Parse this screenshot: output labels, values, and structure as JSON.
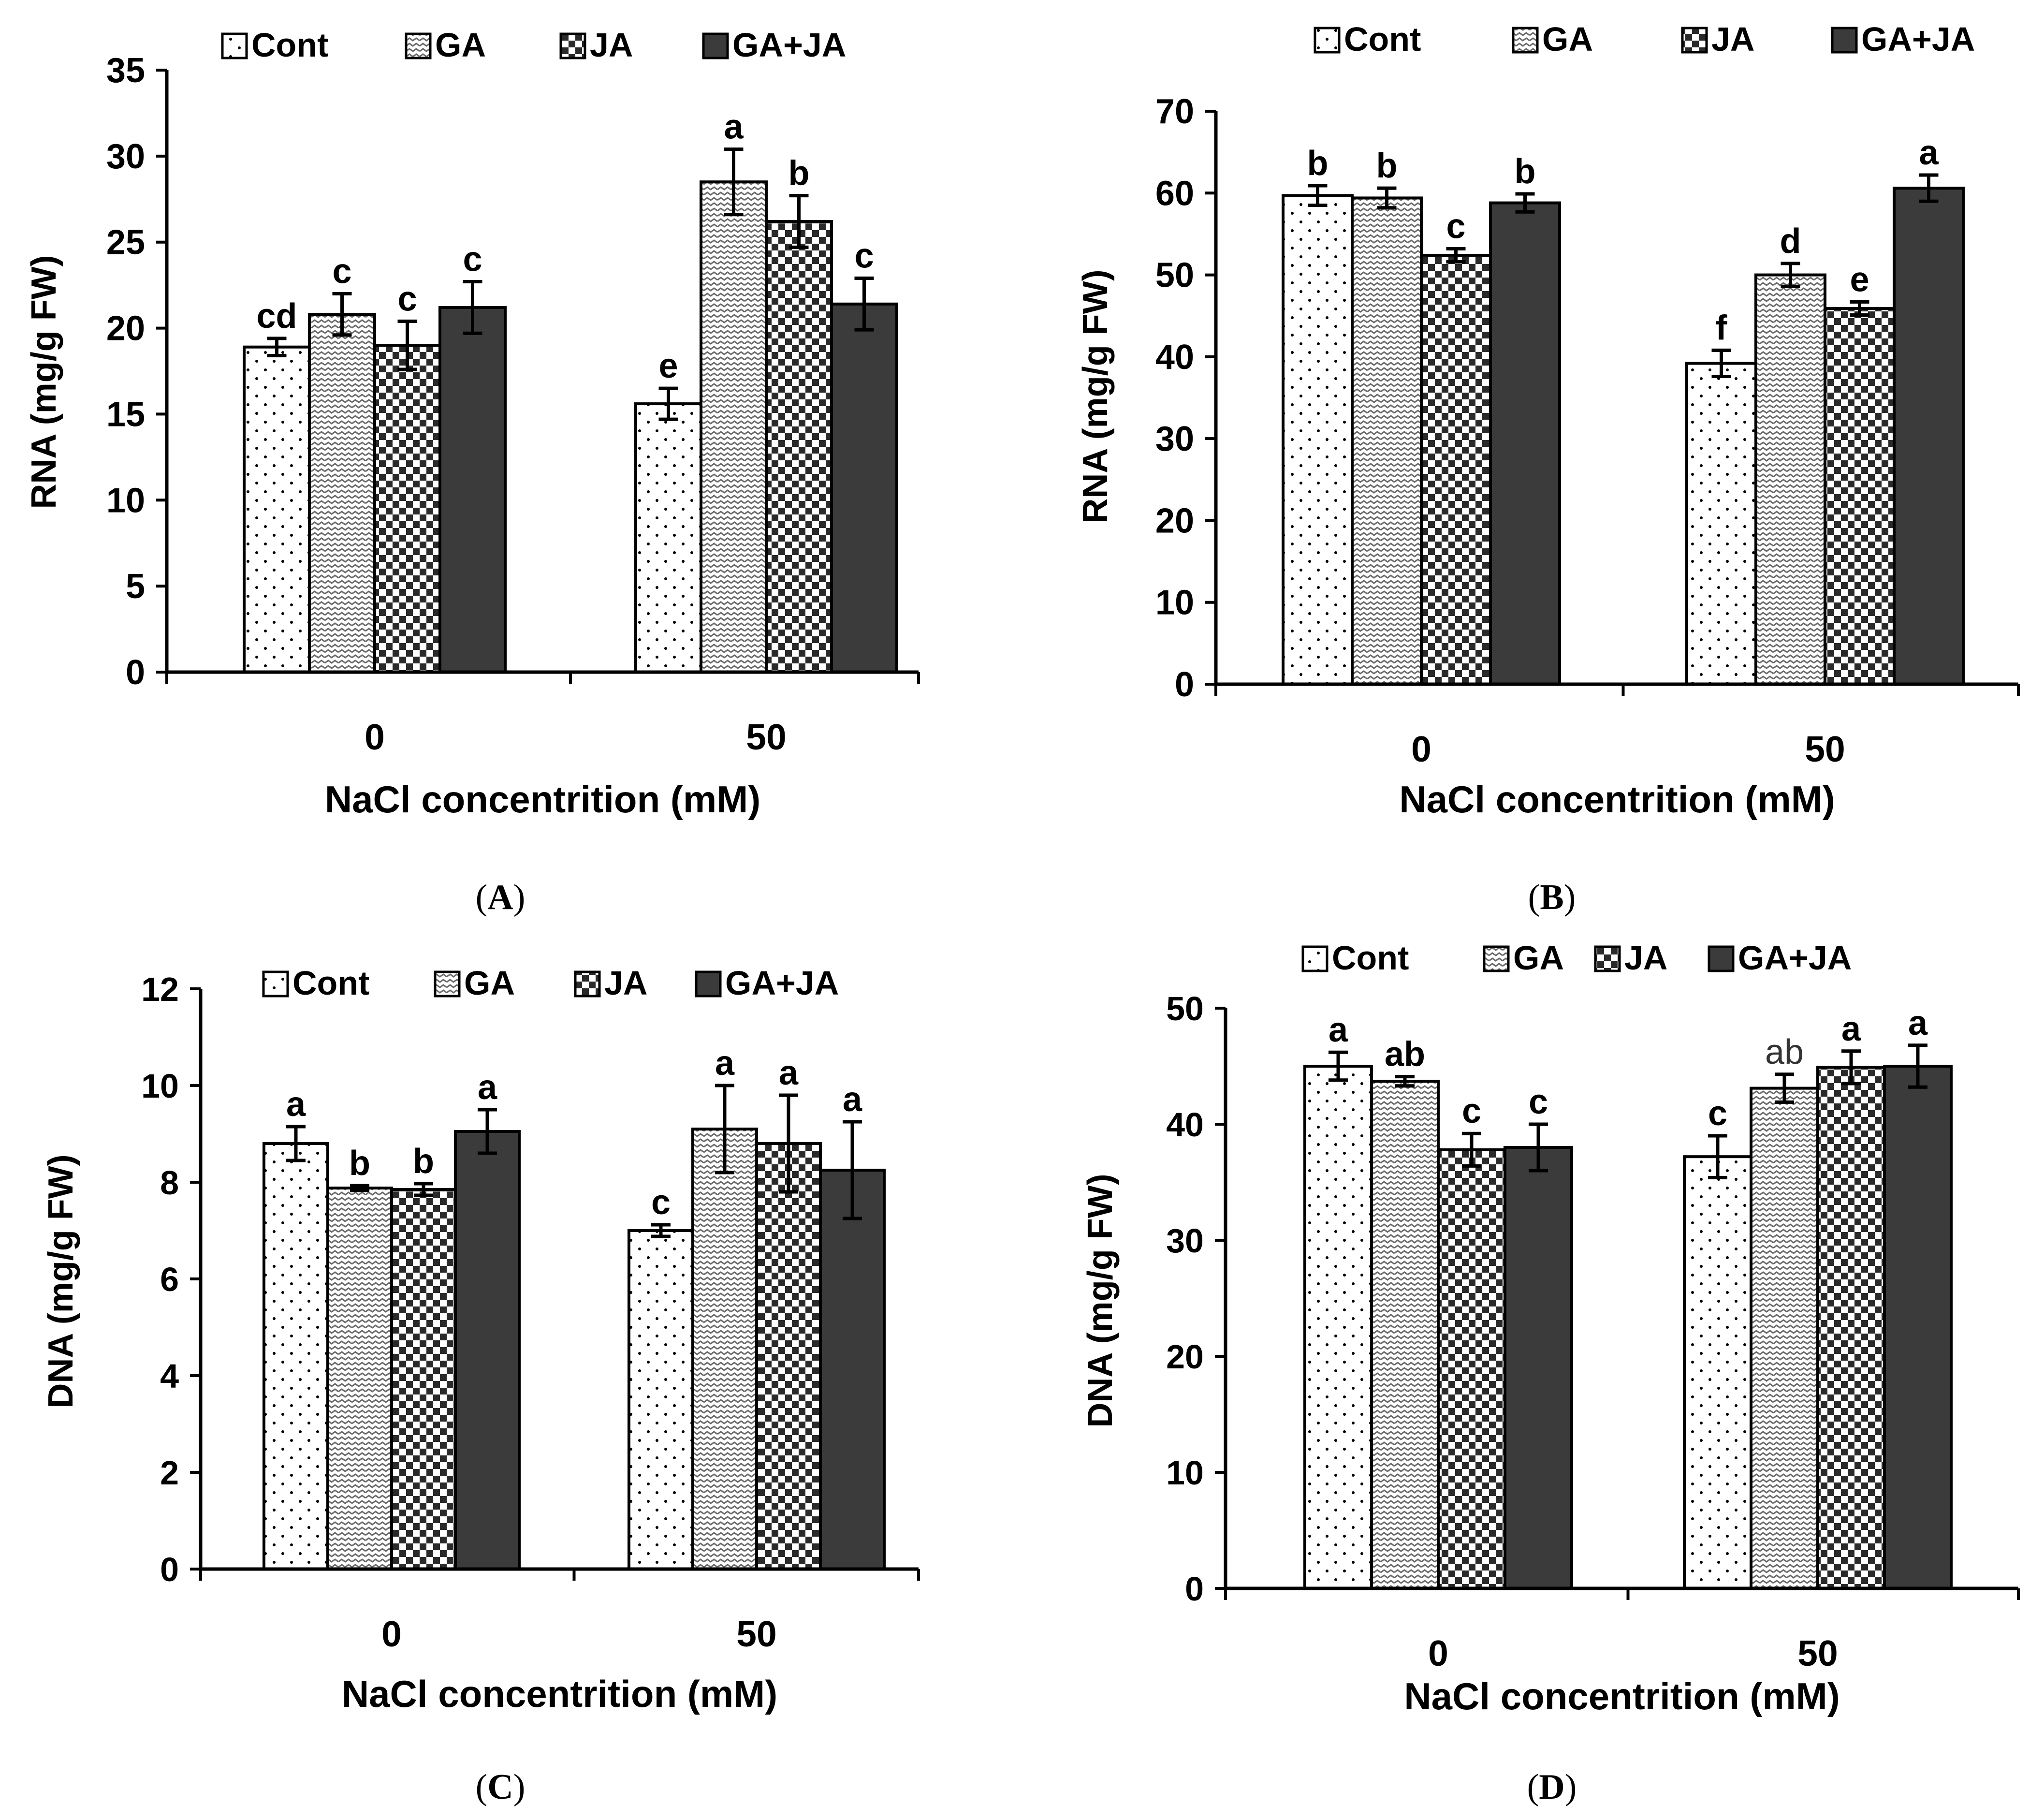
{
  "legend_labels": [
    "Cont",
    "GA",
    "JA",
    "GA+JA"
  ],
  "colors": {
    "axis": "#000000",
    "gaja": "#3b3b3b",
    "cont_fill": "#ffffff",
    "pattern_ink": "#000000"
  },
  "chart_data": [
    {
      "panel": "(A)",
      "type": "bar",
      "ylabel": "RNA (mg/g FW)",
      "xlabel": "NaCl concentrition (mM)",
      "categories": [
        "0",
        "50"
      ],
      "ylim": [
        0,
        35
      ],
      "yticks": [
        0,
        5,
        10,
        15,
        20,
        25,
        30,
        35
      ],
      "series": [
        {
          "name": "Cont",
          "values": [
            18.9,
            15.6
          ],
          "errors": [
            0.5,
            0.9
          ],
          "letters": [
            "cd",
            "e"
          ]
        },
        {
          "name": "GA",
          "values": [
            20.8,
            28.5
          ],
          "errors": [
            1.2,
            1.9
          ],
          "letters": [
            "c",
            "a"
          ]
        },
        {
          "name": "JA",
          "values": [
            19.0,
            26.2
          ],
          "errors": [
            1.4,
            1.5
          ],
          "letters": [
            "c",
            "b"
          ]
        },
        {
          "name": "GA+JA",
          "values": [
            21.2,
            21.4
          ],
          "errors": [
            1.5,
            1.5
          ],
          "letters": [
            "c",
            "c"
          ]
        }
      ]
    },
    {
      "panel": "(B)",
      "type": "bar",
      "ylabel": "RNA (mg/g FW)",
      "xlabel": "NaCl concentrition (mM)",
      "categories": [
        "0",
        "50"
      ],
      "ylim": [
        0,
        70
      ],
      "yticks": [
        0,
        10,
        20,
        30,
        40,
        50,
        60,
        70
      ],
      "series": [
        {
          "name": "Cont",
          "values": [
            59.7,
            39.2
          ],
          "errors": [
            1.2,
            1.6
          ],
          "letters": [
            "b",
            "f"
          ]
        },
        {
          "name": "GA",
          "values": [
            59.4,
            50.0
          ],
          "errors": [
            1.2,
            1.4
          ],
          "letters": [
            "b",
            "d"
          ]
        },
        {
          "name": "JA",
          "values": [
            52.4,
            45.9
          ],
          "errors": [
            0.8,
            0.8
          ],
          "letters": [
            "c",
            "e"
          ]
        },
        {
          "name": "GA+JA",
          "values": [
            58.8,
            60.6
          ],
          "errors": [
            1.1,
            1.6
          ],
          "letters": [
            "b",
            "a"
          ]
        }
      ]
    },
    {
      "panel": "(C)",
      "type": "bar",
      "ylabel": "DNA  (mg/g FW)",
      "xlabel": "NaCl concentrition (mM)",
      "categories": [
        "0",
        "50"
      ],
      "ylim": [
        0,
        12
      ],
      "yticks": [
        0,
        2,
        4,
        6,
        8,
        10,
        12
      ],
      "series": [
        {
          "name": "Cont",
          "values": [
            8.8,
            7.0
          ],
          "errors": [
            0.35,
            0.12
          ],
          "letters": [
            "a",
            "c"
          ]
        },
        {
          "name": "GA",
          "values": [
            7.88,
            9.1
          ],
          "errors": [
            0.05,
            0.9
          ],
          "letters": [
            "b",
            "a"
          ]
        },
        {
          "name": "JA",
          "values": [
            7.85,
            8.8
          ],
          "errors": [
            0.12,
            1.0
          ],
          "letters": [
            "b",
            "a"
          ]
        },
        {
          "name": "GA+JA",
          "values": [
            9.05,
            8.25
          ],
          "errors": [
            0.45,
            1.0
          ],
          "letters": [
            "a",
            "a"
          ]
        }
      ]
    },
    {
      "panel": "(D)",
      "type": "bar",
      "ylabel": "DNA (mg/g FW)",
      "xlabel": "NaCl concentrition (mM)",
      "categories": [
        "0",
        "50"
      ],
      "ylim": [
        0,
        50
      ],
      "yticks": [
        0,
        10,
        20,
        30,
        40,
        50
      ],
      "series": [
        {
          "name": "Cont",
          "values": [
            45.0,
            37.2
          ],
          "errors": [
            1.2,
            1.8
          ],
          "letters": [
            "a",
            "c"
          ]
        },
        {
          "name": "GA",
          "values": [
            43.7,
            43.1
          ],
          "errors": [
            0.4,
            1.2
          ],
          "letters": [
            "ab",
            "ab"
          ]
        },
        {
          "name": "JA",
          "values": [
            37.8,
            44.9
          ],
          "errors": [
            1.4,
            1.4
          ],
          "letters": [
            "c",
            "a"
          ]
        },
        {
          "name": "GA+JA",
          "values": [
            38.0,
            45.0
          ],
          "errors": [
            2.0,
            1.8
          ],
          "letters": [
            "c",
            "a"
          ]
        }
      ]
    }
  ]
}
